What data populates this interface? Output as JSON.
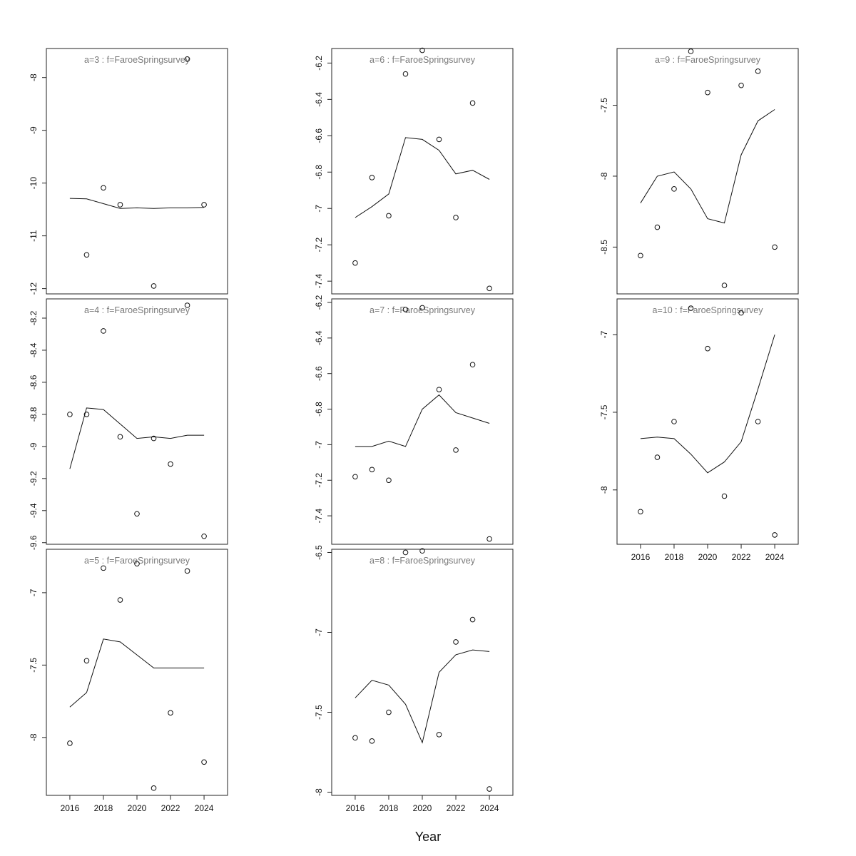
{
  "figure": {
    "xlabel": "Year"
  },
  "chart_data": [
    {
      "type": "scatter",
      "title": "a=3  :  f=FaroeSpringsurvey",
      "xlim": [
        2014.6,
        2025.4
      ],
      "ylim": [
        -12.1,
        -7.45
      ],
      "xticks": [
        2016,
        2018,
        2020,
        2022,
        2024
      ],
      "yticks": [
        -12,
        -11,
        -10,
        -9,
        -8
      ],
      "show_xticks": false,
      "observed": [
        {
          "x": 2016,
          "y": null
        },
        {
          "x": 2017,
          "y": -11.36
        },
        {
          "x": 2018,
          "y": -10.09
        },
        {
          "x": 2019,
          "y": -10.41
        },
        {
          "x": 2020,
          "y": null
        },
        {
          "x": 2021,
          "y": -11.95
        },
        {
          "x": 2022,
          "y": null
        },
        {
          "x": 2023,
          "y": -7.65
        },
        {
          "x": 2024,
          "y": -10.41
        }
      ],
      "fitted": {
        "x": [
          2016,
          2017,
          2018,
          2019,
          2020,
          2021,
          2022,
          2023,
          2024
        ],
        "y": [
          -10.29,
          -10.3,
          -10.39,
          -10.48,
          -10.47,
          -10.48,
          -10.47,
          -10.47,
          -10.46
        ]
      }
    },
    {
      "type": "scatter",
      "title": "a=4  :  f=FaroeSpringsurvey",
      "xlim": [
        2014.6,
        2025.4
      ],
      "ylim": [
        -9.61,
        -8.08
      ],
      "xticks": [
        2016,
        2018,
        2020,
        2022,
        2024
      ],
      "yticks": [
        -9.6,
        -9.4,
        -9.2,
        -9.0,
        -8.8,
        -8.6,
        -8.4,
        -8.2
      ],
      "show_xticks": false,
      "observed": [
        {
          "x": 2016,
          "y": -8.8
        },
        {
          "x": 2017,
          "y": -8.8
        },
        {
          "x": 2018,
          "y": -8.28
        },
        {
          "x": 2019,
          "y": -8.94
        },
        {
          "x": 2020,
          "y": -9.42
        },
        {
          "x": 2021,
          "y": -8.95
        },
        {
          "x": 2022,
          "y": -9.11
        },
        {
          "x": 2023,
          "y": -8.12
        },
        {
          "x": 2024,
          "y": -9.56
        }
      ],
      "fitted": {
        "x": [
          2016,
          2017,
          2018,
          2019,
          2020,
          2021,
          2022,
          2023,
          2024
        ],
        "y": [
          -9.14,
          -8.76,
          -8.77,
          -8.86,
          -8.95,
          -8.94,
          -8.95,
          -8.93,
          -8.93
        ]
      }
    },
    {
      "type": "scatter",
      "title": "a=5  :  f=FaroeSpringsurvey",
      "xlim": [
        2014.6,
        2025.4
      ],
      "ylim": [
        -8.4,
        -6.7
      ],
      "xticks": [
        2016,
        2018,
        2020,
        2022,
        2024
      ],
      "yticks": [
        -8.0,
        -7.5,
        -7.0
      ],
      "show_xticks": true,
      "observed": [
        {
          "x": 2016,
          "y": -8.04
        },
        {
          "x": 2017,
          "y": -7.47
        },
        {
          "x": 2018,
          "y": -6.83
        },
        {
          "x": 2019,
          "y": -7.05
        },
        {
          "x": 2020,
          "y": -6.8
        },
        {
          "x": 2021,
          "y": -8.35
        },
        {
          "x": 2022,
          "y": -7.83
        },
        {
          "x": 2023,
          "y": -6.85
        },
        {
          "x": 2024,
          "y": -8.17
        }
      ],
      "fitted": {
        "x": [
          2016,
          2017,
          2018,
          2019,
          2020,
          2021,
          2022,
          2023,
          2024
        ],
        "y": [
          -7.79,
          -7.69,
          -7.32,
          -7.34,
          -7.43,
          -7.52,
          -7.52,
          -7.52,
          -7.52
        ]
      }
    },
    {
      "type": "scatter",
      "title": "a=6  :  f=FaroeSpringsurvey",
      "xlim": [
        2014.6,
        2025.4
      ],
      "ylim": [
        -7.47,
        -6.12
      ],
      "xticks": [
        2016,
        2018,
        2020,
        2022,
        2024
      ],
      "yticks": [
        -7.4,
        -7.2,
        -7.0,
        -6.8,
        -6.6,
        -6.4,
        -6.2
      ],
      "show_xticks": false,
      "observed": [
        {
          "x": 2016,
          "y": -7.3
        },
        {
          "x": 2017,
          "y": -6.83
        },
        {
          "x": 2018,
          "y": -7.04
        },
        {
          "x": 2019,
          "y": -6.26
        },
        {
          "x": 2020,
          "y": -6.13
        },
        {
          "x": 2021,
          "y": -6.62
        },
        {
          "x": 2022,
          "y": -7.05
        },
        {
          "x": 2023,
          "y": -6.42
        },
        {
          "x": 2024,
          "y": -7.44
        }
      ],
      "fitted": {
        "x": [
          2016,
          2017,
          2018,
          2019,
          2020,
          2021,
          2022,
          2023,
          2024
        ],
        "y": [
          -7.05,
          -6.99,
          -6.92,
          -6.61,
          -6.62,
          -6.68,
          -6.81,
          -6.79,
          -6.84
        ]
      }
    },
    {
      "type": "scatter",
      "title": "a=7  :  f=FaroeSpringsurvey",
      "xlim": [
        2014.6,
        2025.4
      ],
      "ylim": [
        -7.56,
        -6.18
      ],
      "xticks": [
        2016,
        2018,
        2020,
        2022,
        2024
      ],
      "yticks": [
        -7.4,
        -7.2,
        -7.0,
        -6.8,
        -6.6,
        -6.4,
        -6.2
      ],
      "show_xticks": false,
      "observed": [
        {
          "x": 2016,
          "y": -7.18
        },
        {
          "x": 2017,
          "y": -7.14
        },
        {
          "x": 2018,
          "y": -7.2
        },
        {
          "x": 2019,
          "y": -6.24
        },
        {
          "x": 2020,
          "y": -6.23
        },
        {
          "x": 2021,
          "y": -6.69
        },
        {
          "x": 2022,
          "y": -7.03
        },
        {
          "x": 2023,
          "y": -6.55
        },
        {
          "x": 2024,
          "y": -7.53
        }
      ],
      "fitted": {
        "x": [
          2016,
          2017,
          2018,
          2019,
          2020,
          2021,
          2022,
          2023,
          2024
        ],
        "y": [
          -7.01,
          -7.01,
          -6.98,
          -7.01,
          -6.8,
          -6.72,
          -6.82,
          -6.85,
          -6.88
        ]
      }
    },
    {
      "type": "scatter",
      "title": "a=8  :  f=FaroeSpringsurvey",
      "xlim": [
        2014.6,
        2025.4
      ],
      "ylim": [
        -8.02,
        -6.48
      ],
      "xticks": [
        2016,
        2018,
        2020,
        2022,
        2024
      ],
      "yticks": [
        -8.0,
        -7.5,
        -7.0,
        -6.5
      ],
      "show_xticks": true,
      "observed": [
        {
          "x": 2016,
          "y": -7.66
        },
        {
          "x": 2017,
          "y": -7.68
        },
        {
          "x": 2018,
          "y": -7.5
        },
        {
          "x": 2019,
          "y": -6.5
        },
        {
          "x": 2020,
          "y": -6.49
        },
        {
          "x": 2021,
          "y": -7.64
        },
        {
          "x": 2022,
          "y": -7.06
        },
        {
          "x": 2023,
          "y": -6.92
        },
        {
          "x": 2024,
          "y": -7.98
        }
      ],
      "fitted": {
        "x": [
          2016,
          2017,
          2018,
          2019,
          2020,
          2021,
          2022,
          2023,
          2024
        ],
        "y": [
          -7.41,
          -7.3,
          -7.33,
          -7.45,
          -7.69,
          -7.25,
          -7.14,
          -7.11,
          -7.12
        ]
      }
    },
    {
      "type": "scatter",
      "title": "a=9  :  f=FaroeSpringsurvey",
      "xlim": [
        2014.6,
        2025.4
      ],
      "ylim": [
        -8.83,
        -7.1
      ],
      "xticks": [
        2016,
        2018,
        2020,
        2022,
        2024
      ],
      "yticks": [
        -8.5,
        -8.0,
        -7.5
      ],
      "show_xticks": false,
      "observed": [
        {
          "x": 2016,
          "y": -8.56
        },
        {
          "x": 2017,
          "y": -8.36
        },
        {
          "x": 2018,
          "y": -8.09
        },
        {
          "x": 2019,
          "y": -7.12
        },
        {
          "x": 2020,
          "y": -7.41
        },
        {
          "x": 2021,
          "y": -8.77
        },
        {
          "x": 2022,
          "y": -7.36
        },
        {
          "x": 2023,
          "y": -7.26
        },
        {
          "x": 2024,
          "y": -8.5
        }
      ],
      "fitted": {
        "x": [
          2016,
          2017,
          2018,
          2019,
          2020,
          2021,
          2022,
          2023,
          2024
        ],
        "y": [
          -8.19,
          -8.0,
          -7.97,
          -8.09,
          -8.3,
          -8.33,
          -7.85,
          -7.61,
          -7.53
        ]
      }
    },
    {
      "type": "scatter",
      "title": "a=10  :  f=FaroeSpringsurvey",
      "xlim": [
        2014.6,
        2025.4
      ],
      "ylim": [
        -8.35,
        -6.77
      ],
      "xticks": [
        2016,
        2018,
        2020,
        2022,
        2024
      ],
      "yticks": [
        -8.0,
        -7.5,
        -7.0
      ],
      "show_xticks": true,
      "observed": [
        {
          "x": 2016,
          "y": -8.14
        },
        {
          "x": 2017,
          "y": -7.79
        },
        {
          "x": 2018,
          "y": -7.56
        },
        {
          "x": 2019,
          "y": -6.83
        },
        {
          "x": 2020,
          "y": -7.09
        },
        {
          "x": 2021,
          "y": -8.04
        },
        {
          "x": 2022,
          "y": -6.86
        },
        {
          "x": 2023,
          "y": -7.56
        },
        {
          "x": 2024,
          "y": -8.29
        }
      ],
      "fitted": {
        "x": [
          2016,
          2017,
          2018,
          2019,
          2020,
          2021,
          2022,
          2023,
          2024
        ],
        "y": [
          -7.67,
          -7.66,
          -7.67,
          -7.77,
          -7.89,
          -7.82,
          -7.69,
          -7.35,
          -7.0
        ]
      }
    }
  ]
}
